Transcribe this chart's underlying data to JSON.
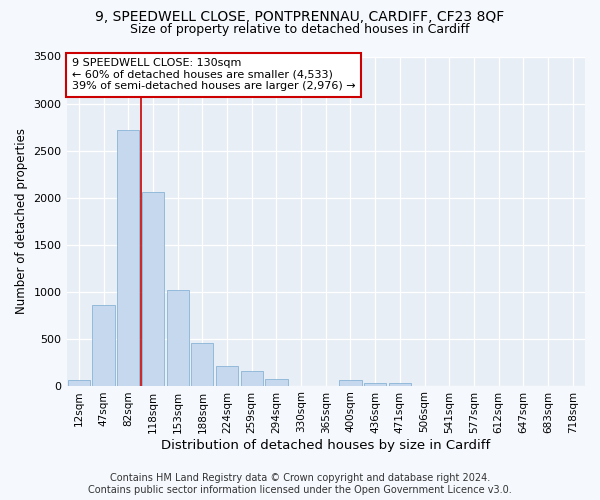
{
  "title_line1": "9, SPEEDWELL CLOSE, PONTPRENNAU, CARDIFF, CF23 8QF",
  "title_line2": "Size of property relative to detached houses in Cardiff",
  "xlabel": "Distribution of detached houses by size in Cardiff",
  "ylabel": "Number of detached properties",
  "categories": [
    "12sqm",
    "47sqm",
    "82sqm",
    "118sqm",
    "153sqm",
    "188sqm",
    "224sqm",
    "259sqm",
    "294sqm",
    "330sqm",
    "365sqm",
    "400sqm",
    "436sqm",
    "471sqm",
    "506sqm",
    "541sqm",
    "577sqm",
    "612sqm",
    "647sqm",
    "683sqm",
    "718sqm"
  ],
  "values": [
    60,
    860,
    2720,
    2060,
    1020,
    450,
    210,
    155,
    70,
    0,
    0,
    60,
    30,
    30,
    0,
    0,
    0,
    0,
    0,
    0,
    0
  ],
  "bar_color": "#c5d8ee",
  "bar_edge_color": "#7aaad0",
  "vline_color": "#cc0000",
  "vline_xindex": 2.5,
  "annotation_text": "9 SPEEDWELL CLOSE: 130sqm\n← 60% of detached houses are smaller (4,533)\n39% of semi-detached houses are larger (2,976) →",
  "annotation_box_facecolor": "#ffffff",
  "annotation_box_edgecolor": "#cc0000",
  "ylim_max": 3500,
  "yticks": [
    0,
    500,
    1000,
    1500,
    2000,
    2500,
    3000,
    3500
  ],
  "footer_line1": "Contains HM Land Registry data © Crown copyright and database right 2024.",
  "footer_line2": "Contains public sector information licensed under the Open Government Licence v3.0.",
  "fig_bg_color": "#f5f8fc",
  "plot_bg_color": "#e8eef5",
  "title1_fontsize": 10,
  "title2_fontsize": 9,
  "xlabel_fontsize": 9.5,
  "ylabel_fontsize": 8.5,
  "tick_fontsize": 7.5,
  "footer_fontsize": 7.0
}
